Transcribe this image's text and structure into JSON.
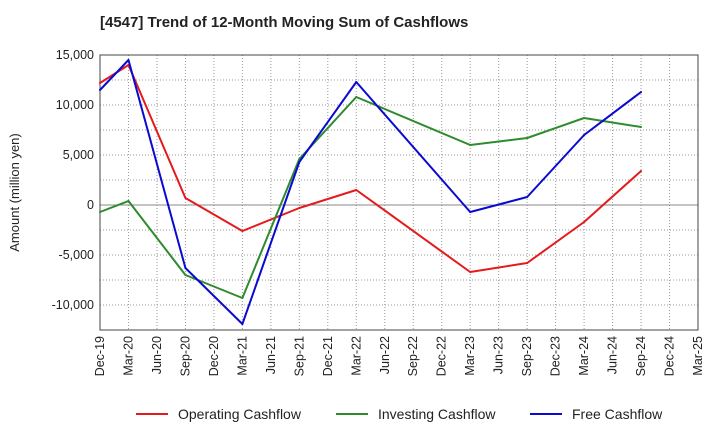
{
  "chart_data": {
    "type": "line",
    "title": "[4547]  Trend of 12-Month Moving Sum of Cashflows",
    "xlabel": "",
    "ylabel": "Amount (million yen)",
    "ylim": [
      -12500,
      15000
    ],
    "yticks": [
      15000,
      10000,
      5000,
      0,
      -5000,
      -10000
    ],
    "ytick_labels": [
      "15,000",
      "10,000",
      "5,000",
      "0",
      "-5,000",
      "-10,000"
    ],
    "categories": [
      "Dec-19",
      "Mar-20",
      "Jun-20",
      "Sep-20",
      "Dec-20",
      "Mar-21",
      "Jun-21",
      "Sep-21",
      "Dec-21",
      "Mar-22",
      "Jun-22",
      "Sep-22",
      "Dec-22",
      "Mar-23",
      "Jun-23",
      "Sep-23",
      "Dec-23",
      "Mar-24",
      "Jun-24",
      "Sep-24",
      "Dec-24",
      "Mar-25"
    ],
    "grid": true,
    "legend_position": "bottom",
    "series": [
      {
        "name": "Operating Cashflow",
        "color": "#e41a1c",
        "values": [
          12200,
          14000,
          null,
          700,
          null,
          -2600,
          null,
          -300,
          null,
          1500,
          null,
          null,
          null,
          -6700,
          null,
          -5800,
          null,
          -1700,
          null,
          3400,
          null,
          null
        ]
      },
      {
        "name": "Investing Cashflow",
        "color": "#2e8b2e",
        "values": [
          -700,
          400,
          null,
          -7000,
          null,
          -9300,
          null,
          4600,
          null,
          10800,
          null,
          null,
          null,
          6000,
          null,
          6700,
          null,
          8700,
          null,
          7800,
          null,
          null
        ]
      },
      {
        "name": "Free Cashflow",
        "color": "#0a0ad0",
        "values": [
          11500,
          14500,
          null,
          -6300,
          null,
          -11900,
          null,
          4300,
          null,
          12300,
          null,
          null,
          null,
          -700,
          null,
          800,
          null,
          7000,
          null,
          11300,
          null,
          null
        ]
      }
    ]
  }
}
